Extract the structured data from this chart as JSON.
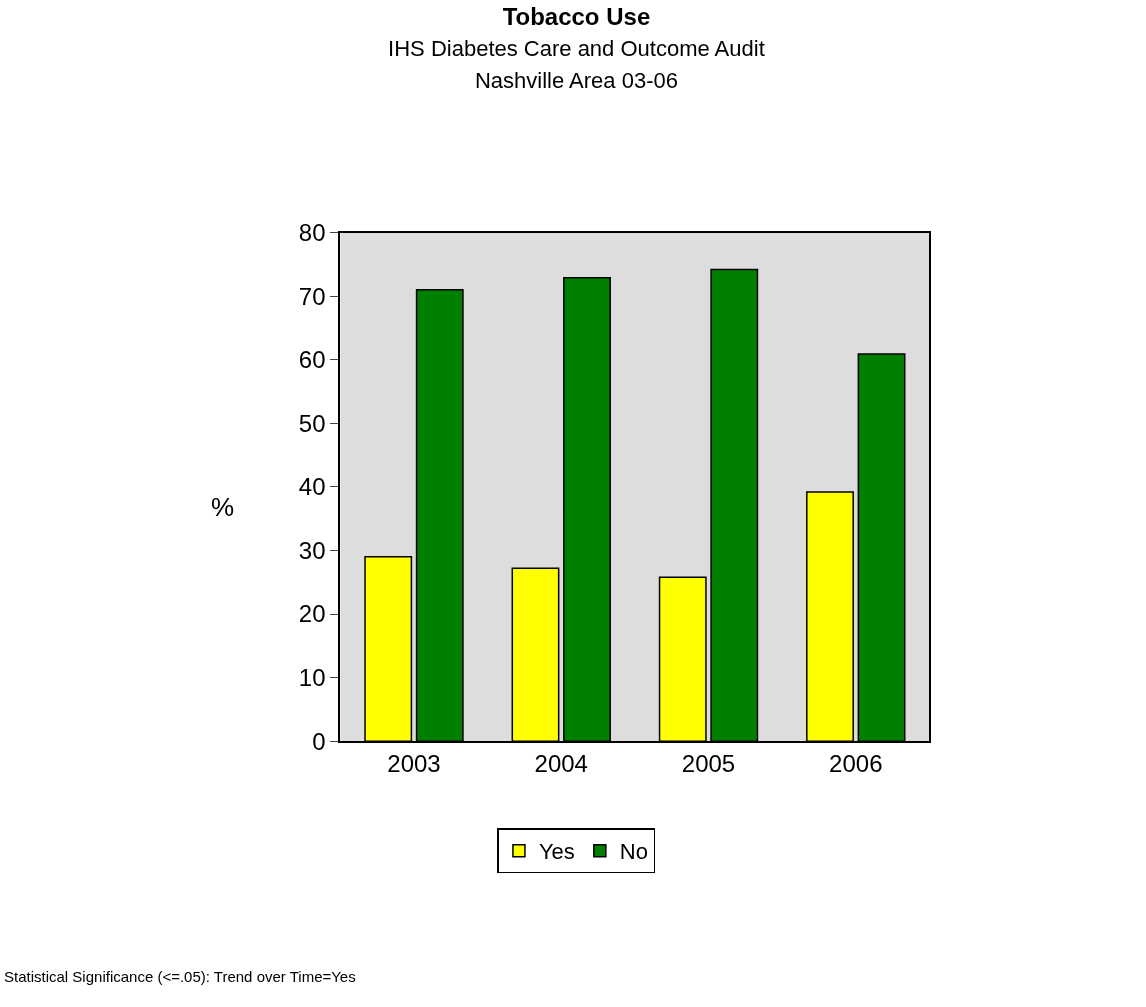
{
  "chart_data": {
    "type": "bar",
    "title": "Tobacco Use",
    "subtitle": "IHS Diabetes Care and Outcome Audit\nNashville Area 03-06",
    "ylabel": "%",
    "categories": [
      "2003",
      "2004",
      "2005",
      "2006"
    ],
    "series": [
      {
        "name": "Yes",
        "color": "#ffff00",
        "values": [
          29.0,
          27.2,
          25.8,
          39.2
        ]
      },
      {
        "name": "No",
        "color": "#007f00",
        "values": [
          71.0,
          72.9,
          74.2,
          60.9
        ]
      }
    ],
    "ylim": [
      0,
      80
    ],
    "yticks": [
      0,
      10,
      20,
      30,
      40,
      50,
      60,
      70,
      80
    ],
    "grid": false,
    "legend": "bottom",
    "annotations": [
      "Statistical Significance (<=.05): Trend over Time=Yes"
    ]
  }
}
